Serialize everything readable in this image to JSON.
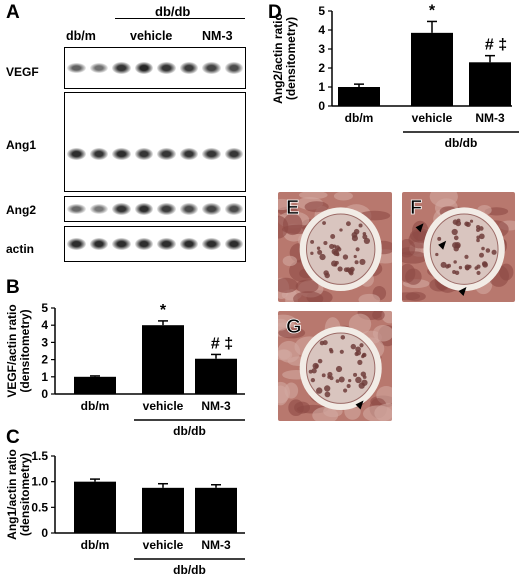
{
  "panel_a": {
    "letter": "A",
    "group_header": "db/db",
    "lanes": [
      "db/m",
      "vehicle",
      "NM-3"
    ],
    "blots": [
      {
        "label": "VEGF",
        "intensities": [
          0.55,
          0.45,
          0.85,
          0.95,
          0.85,
          0.8,
          0.75,
          0.7
        ]
      },
      {
        "label": "Ang1",
        "intensities": [
          0.9,
          0.85,
          0.9,
          0.85,
          0.85,
          0.85,
          0.85,
          0.85
        ]
      },
      {
        "label": "Ang2",
        "intensities": [
          0.5,
          0.4,
          0.85,
          0.9,
          0.8,
          0.7,
          0.75,
          0.7
        ]
      },
      {
        "label": "actin",
        "intensities": [
          0.9,
          0.9,
          0.9,
          0.9,
          0.9,
          0.9,
          0.9,
          0.9
        ]
      }
    ]
  },
  "chart_data": [
    {
      "panel": "B",
      "type": "bar",
      "categories": [
        "db/m",
        "vehicle",
        "NM-3"
      ],
      "values": [
        1.0,
        4.0,
        2.05
      ],
      "errors": [
        0.05,
        0.25,
        0.25
      ],
      "annotations": [
        "",
        "*",
        "# ‡"
      ],
      "group_label": "db/db",
      "ylabel": "VEGF/actin ratio (densitometry)",
      "yticks": [
        0,
        1,
        2,
        3,
        4,
        5
      ],
      "ylim": [
        0,
        5
      ]
    },
    {
      "panel": "C",
      "type": "bar",
      "categories": [
        "db/m",
        "vehicle",
        "NM-3"
      ],
      "values": [
        1.0,
        0.88,
        0.88
      ],
      "errors": [
        0.05,
        0.08,
        0.06
      ],
      "annotations": [
        "",
        "",
        ""
      ],
      "group_label": "db/db",
      "ylabel": "Ang1/actin ratio (densitometry)",
      "yticks": [
        0,
        0.5,
        1.0,
        1.5
      ],
      "ytick_labels": [
        "0",
        "0.5",
        "1.0",
        "1.5"
      ],
      "ylim": [
        0,
        1.5
      ]
    },
    {
      "panel": "D",
      "type": "bar",
      "categories": [
        "db/m",
        "vehicle",
        "NM-3"
      ],
      "values": [
        1.0,
        3.85,
        2.3
      ],
      "errors": [
        0.15,
        0.6,
        0.35
      ],
      "annotations": [
        "",
        "*",
        "# ‡"
      ],
      "group_label": "db/db",
      "ylabel": "Ang2/actin ratio (densitometry)",
      "yticks": [
        0,
        1,
        2,
        3,
        4,
        5
      ],
      "ylim": [
        0,
        5
      ]
    }
  ],
  "micrographs": [
    {
      "letter": "E",
      "arrowheads": 0
    },
    {
      "letter": "F",
      "arrowheads": 3
    },
    {
      "letter": "G",
      "arrowheads": 1
    }
  ]
}
